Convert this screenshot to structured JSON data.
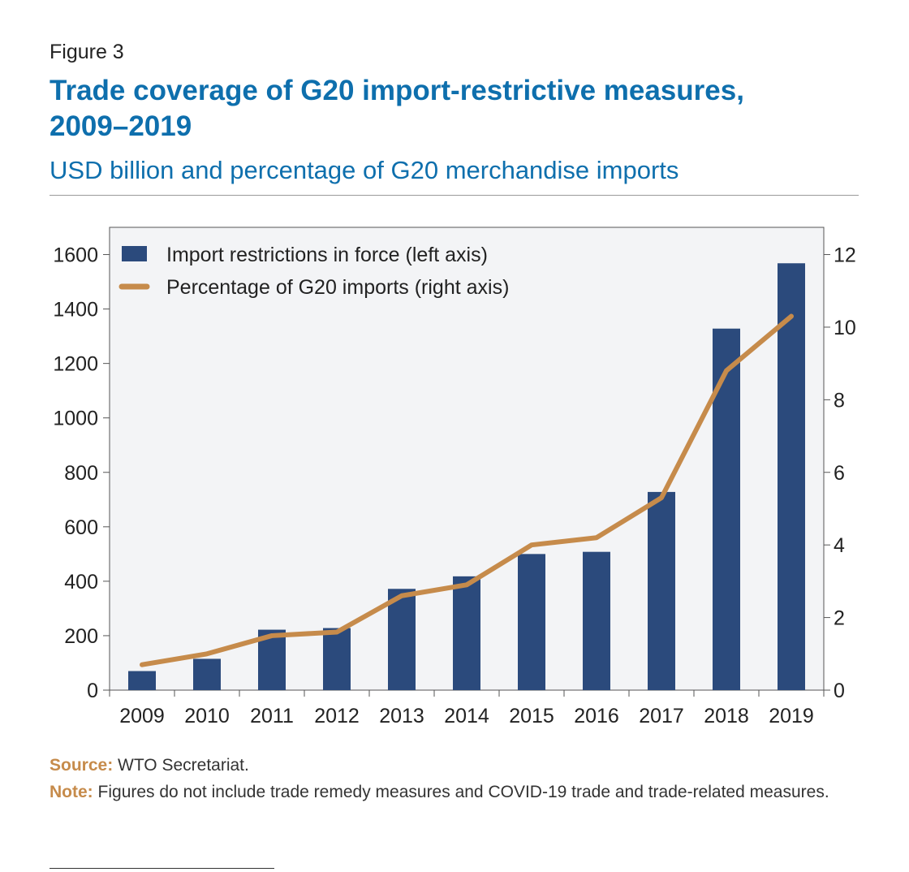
{
  "figure_label": "Figure 3",
  "title": "Trade coverage of G20 import-restrictive measures, 2009–2019",
  "subtitle": "USD billion and percentage of G20 merchandise imports",
  "source": {
    "label": "Source:",
    "text": "WTO Secretariat."
  },
  "note": {
    "label": "Note:",
    "text": "Figures do not include trade remedy measures and COVID-19 trade and trade-related measures."
  },
  "colors": {
    "bar": "#2b4a7c",
    "line": "#c68b4b",
    "plot_bg": "#f3f4f6",
    "title": "#0e6fad"
  },
  "chart_data": {
    "type": "bar",
    "categories": [
      "2009",
      "2010",
      "2011",
      "2012",
      "2013",
      "2014",
      "2015",
      "2016",
      "2017",
      "2018",
      "2019"
    ],
    "series": [
      {
        "name": "Import restrictions in force (left axis)",
        "type": "bar",
        "axis": "left",
        "values": [
          70,
          115,
          222,
          228,
          372,
          418,
          500,
          508,
          728,
          1328,
          1568
        ]
      },
      {
        "name": "Percentage of G20 imports (right axis)",
        "type": "line",
        "axis": "right",
        "values": [
          0.7,
          1.0,
          1.5,
          1.6,
          2.6,
          2.9,
          4.0,
          4.2,
          5.3,
          8.8,
          10.3
        ]
      }
    ],
    "y_left": {
      "min": 0,
      "max": 1700,
      "ticks": [
        0,
        200,
        400,
        600,
        800,
        1000,
        1200,
        1400,
        1600
      ]
    },
    "y_right": {
      "min": 0,
      "max": 12.75,
      "ticks": [
        0,
        2,
        4,
        6,
        8,
        10,
        12
      ]
    },
    "legend": "top-left",
    "grid": false
  }
}
